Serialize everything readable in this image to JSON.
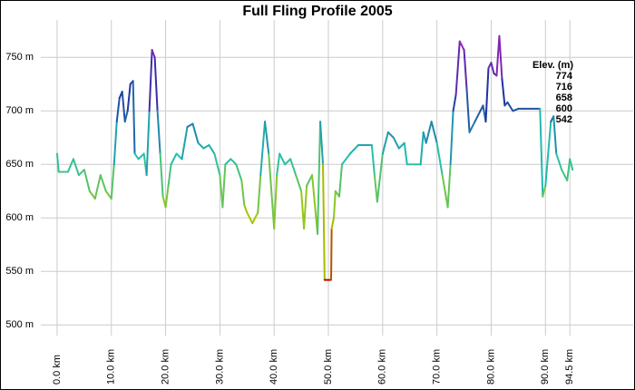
{
  "chart_data": {
    "type": "line",
    "title": "Full Fling Profile 2005",
    "series": [
      {
        "x": [
          0,
          0.3,
          2,
          3,
          4,
          5,
          6,
          7,
          8,
          9,
          10,
          10.5,
          11,
          11.5,
          12,
          12.5,
          13,
          13.5,
          14,
          14.3,
          15,
          16,
          16.5,
          17,
          17.5,
          18,
          18.5,
          19,
          19.5,
          20,
          20.5,
          21,
          22,
          23,
          24,
          25,
          26,
          27,
          28,
          29,
          30,
          30.5,
          31,
          32,
          33,
          34,
          34.5,
          35,
          36,
          37,
          37.5,
          38.3,
          39,
          40,
          40.5,
          41,
          42,
          43,
          44,
          45,
          45.5,
          46,
          47,
          48,
          48.5,
          49,
          49.3,
          50.5,
          50.6,
          51,
          51.3,
          52,
          52.5,
          54,
          55.5,
          58,
          58.5,
          59,
          60,
          61,
          62,
          63,
          64,
          64.5,
          67,
          67.5,
          68,
          69,
          70,
          71,
          72,
          72.5,
          73,
          73.5,
          74.2,
          75,
          75.5,
          76,
          77,
          78,
          78.5,
          79,
          79.5,
          80,
          80.5,
          81,
          81.5,
          82,
          82.5,
          83,
          84,
          85,
          86,
          89,
          89.5,
          90,
          91,
          91.5,
          92,
          93,
          94,
          94.5,
          95
        ],
        "values": [
          660,
          643,
          643,
          655,
          640,
          645,
          625,
          618,
          640,
          625,
          618,
          650,
          690,
          712,
          718,
          690,
          700,
          725,
          728,
          660,
          655,
          660,
          640,
          700,
          757,
          750,
          700,
          660,
          620,
          610,
          630,
          650,
          660,
          655,
          685,
          688,
          670,
          665,
          668,
          660,
          640,
          610,
          650,
          655,
          650,
          635,
          612,
          605,
          595,
          605,
          640,
          690,
          660,
          590,
          640,
          660,
          650,
          655,
          640,
          625,
          590,
          630,
          640,
          585,
          690,
          650,
          542,
          542,
          590,
          600,
          625,
          620,
          650,
          660,
          668,
          668,
          640,
          615,
          660,
          680,
          675,
          665,
          670,
          650,
          650,
          680,
          670,
          690,
          670,
          640,
          610,
          650,
          700,
          715,
          765,
          757,
          720,
          680,
          690,
          700,
          705,
          690,
          740,
          745,
          735,
          733,
          770,
          730,
          705,
          708,
          700,
          702,
          702,
          702,
          620,
          630,
          690,
          695,
          660,
          645,
          635,
          655,
          645
        ]
      }
    ],
    "xlim": [
      -3,
      106.17
    ],
    "ylim": [
      490,
      785
    ],
    "xticks": [
      {
        "value": 0,
        "label": "0.0 km"
      },
      {
        "value": 10,
        "label": "10.0 km"
      },
      {
        "value": 20,
        "label": "20.0 km"
      },
      {
        "value": 30,
        "label": "30.0 km"
      },
      {
        "value": 40,
        "label": "40.0 km"
      },
      {
        "value": 50,
        "label": "50.0 km"
      },
      {
        "value": 60,
        "label": "60.0 km"
      },
      {
        "value": 70,
        "label": "70.0 km"
      },
      {
        "value": 80,
        "label": "80.0 km"
      },
      {
        "value": 90,
        "label": "90.0 km"
      },
      {
        "value": 94.5,
        "label": "94.5 km"
      }
    ],
    "yticks": [
      {
        "value": 500,
        "label": "500 m"
      },
      {
        "value": 550,
        "label": "550 m"
      },
      {
        "value": 600,
        "label": "600 m"
      },
      {
        "value": 650,
        "label": "650 m"
      },
      {
        "value": 700,
        "label": "700 m"
      },
      {
        "value": 750,
        "label": "750 m"
      }
    ],
    "grid": true,
    "legend": {
      "title": "Elev. (m)",
      "stops": [
        {
          "value": 774,
          "color": "#c020c0"
        },
        {
          "value": 716,
          "color": "#2030a0"
        },
        {
          "value": 658,
          "color": "#20c0b0"
        },
        {
          "value": 600,
          "color": "#a8c800"
        },
        {
          "value": 542,
          "color": "#c00000"
        }
      ]
    }
  }
}
